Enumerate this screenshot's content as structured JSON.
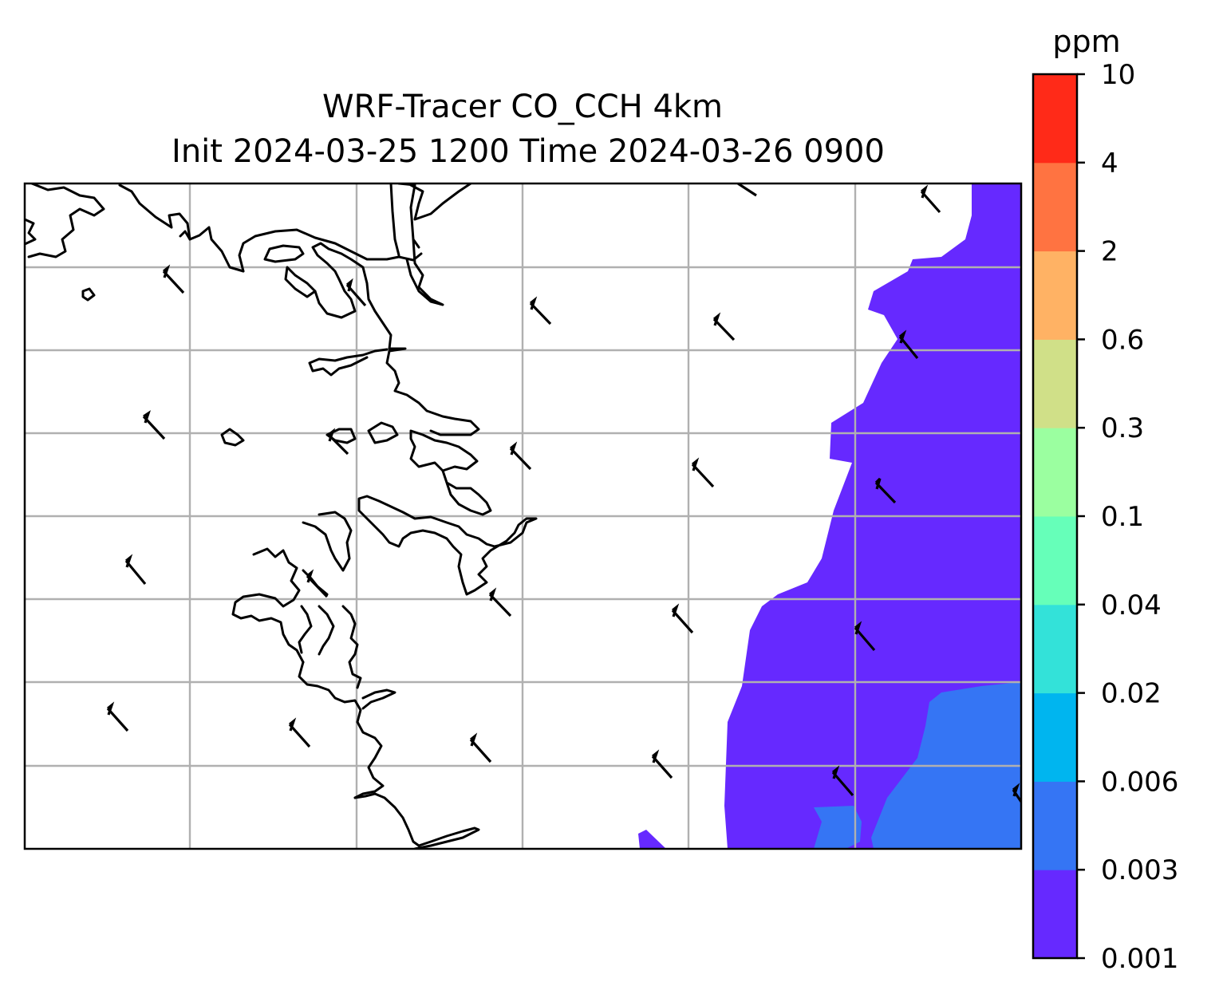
{
  "title": {
    "line1": "WRF-Tracer CO_CCH 4km",
    "line2": "Init 2024-03-25 1200 Time 2024-03-26 0900"
  },
  "colorbar": {
    "unit": "ppm",
    "levels": [
      "0.001",
      "0.003",
      "0.006",
      "0.02",
      "0.04",
      "0.1",
      "0.3",
      "0.6",
      "2",
      "4",
      "10"
    ],
    "colors": [
      "#6629ff",
      "#3575f4",
      "#00b5ef",
      "#33e2d9",
      "#66ffb9",
      "#9bffa0",
      "#d0e088",
      "#ffb264",
      "#ff7341",
      "#ff2a18"
    ]
  },
  "map": {
    "field_colors_shown": {
      "low_band": "#6629ff",
      "second_band": "#3575f4"
    },
    "gridlines": true,
    "coastline_color": "#000000"
  }
}
